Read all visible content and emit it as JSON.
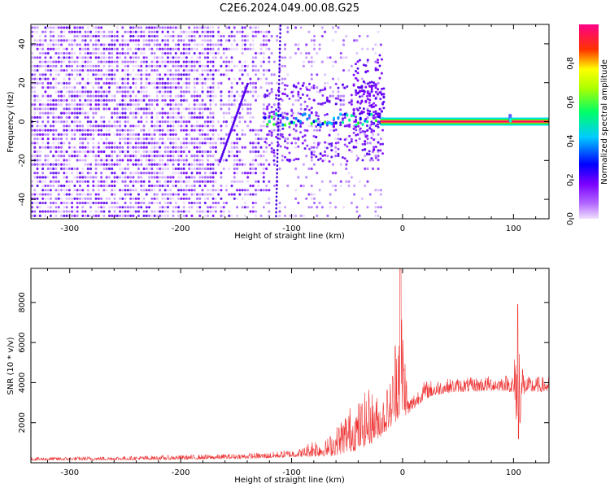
{
  "figure_title": "C2E6.2024.049.00.08.G25",
  "chart_data": [
    {
      "type": "heatmap",
      "xlabel": "Height of straight line (km)",
      "ylabel": "Frequency (Hz)",
      "xlim": [
        -335,
        132
      ],
      "ylim": [
        -50,
        50
      ],
      "xticks": [
        -300,
        -200,
        -100,
        0,
        100
      ],
      "yticks": [
        -40,
        -20,
        0,
        20,
        40
      ],
      "colorbar": {
        "label": "Normalized spectral amplitude",
        "range": [
          0,
          1
        ],
        "ticks": [
          0.0,
          0.2,
          0.4,
          0.6,
          0.8
        ],
        "colormap": [
          "#e6ccff",
          "#8800ff",
          "#0000ff",
          "#00ffff",
          "#00ff00",
          "#ffff00",
          "#ff0000",
          "#ff0088"
        ]
      },
      "features": {
        "noise_region_x": [
          -335,
          -20
        ],
        "sloped_trace": {
          "x": [
            -165,
            -140
          ],
          "y": [
            -20,
            20
          ]
        },
        "vertical_trace_x": -113,
        "carrier_line": {
          "x_start": -20,
          "x_end": 132,
          "y": 0
        },
        "spike_x": 97
      }
    },
    {
      "type": "line",
      "xlabel": "Height of straight line (km)",
      "ylabel": "SNR (10 * v/v)",
      "xlim": [
        -335,
        132
      ],
      "ylim": [
        0,
        9700
      ],
      "xticks": [
        -300,
        -200,
        -100,
        0,
        100
      ],
      "yticks": [
        2000,
        4000,
        6000,
        8000
      ],
      "color": "#ee3333",
      "envelope": {
        "x": [
          -335,
          -250,
          -170,
          -120,
          -90,
          -80,
          -70,
          -60,
          -50,
          -40,
          -30,
          -20,
          -10,
          -2,
          5,
          20,
          40,
          60,
          80,
          95,
          100,
          104,
          110,
          132
        ],
        "low": [
          120,
          140,
          180,
          230,
          300,
          300,
          330,
          380,
          500,
          650,
          900,
          1300,
          1800,
          2300,
          2400,
          3200,
          3500,
          3550,
          3600,
          3600,
          3400,
          1200,
          3500,
          3550
        ],
        "high": [
          280,
          330,
          420,
          520,
          750,
          1300,
          1100,
          1800,
          2800,
          3100,
          3800,
          3200,
          4300,
          9700,
          3200,
          4100,
          4200,
          4250,
          4350,
          4400,
          4500,
          7900,
          4300,
          4300
        ]
      }
    }
  ]
}
